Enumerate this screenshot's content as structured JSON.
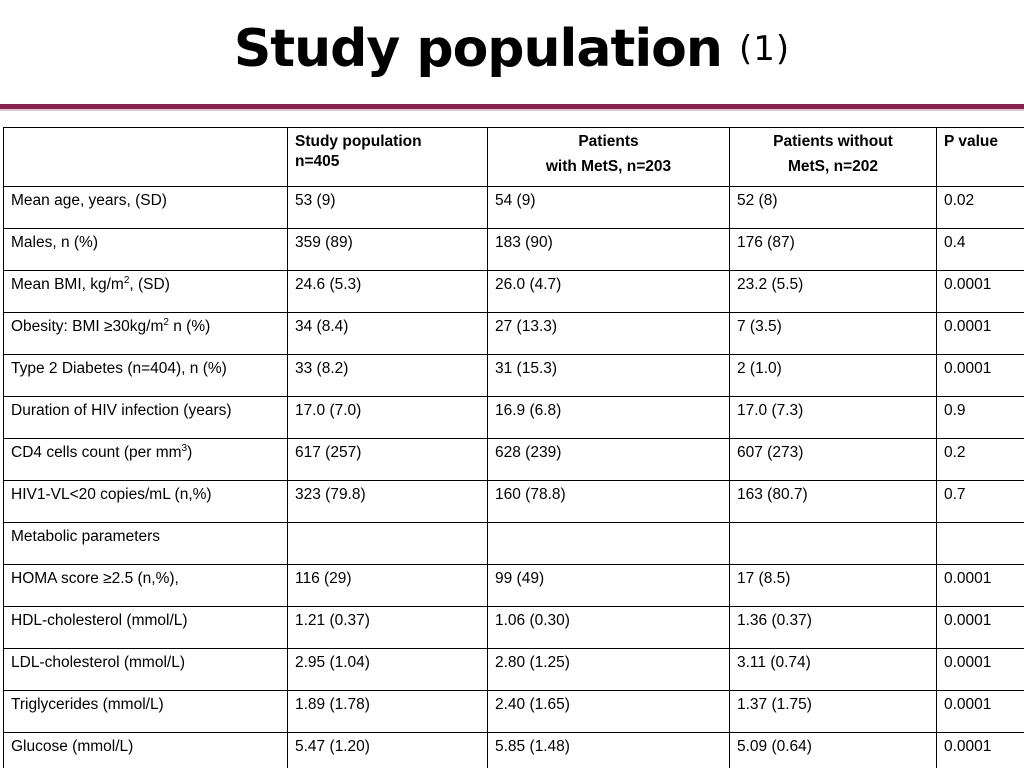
{
  "title": {
    "main": "Study population",
    "number": "(1)"
  },
  "table": {
    "headers": [
      {
        "line1": "",
        "line2": ""
      },
      {
        "line1": "Study population",
        "line2": "n=405"
      },
      {
        "line1": "Patients",
        "line2": "with MetS, n=203"
      },
      {
        "line1": "Patients without",
        "line2": "MetS, n=202"
      },
      {
        "line1": "P value",
        "line2": ""
      }
    ],
    "rows": [
      {
        "label": "Mean age, years, (SD)",
        "cells": [
          "53 (9)",
          "54 (9)",
          "52 (8)",
          "0.02"
        ]
      },
      {
        "label": "Males, n (%)",
        "cells": [
          "359 (89)",
          "183 (90)",
          "176 (87)",
          "0.4"
        ]
      },
      {
        "label_pre": "Mean BMI, kg/m",
        "label_sup": "2",
        "label_post": ", (SD)",
        "cells": [
          "24.6 (5.3)",
          "26.0 (4.7)",
          "23.2 (5.5)",
          "0.0001"
        ]
      },
      {
        "label_pre": "Obesity: BMI ≥30kg/m",
        "label_sup": "2",
        "label_post": " n (%)",
        "cells": [
          "34 (8.4)",
          "27 (13.3)",
          "7 (3.5)",
          "0.0001"
        ]
      },
      {
        "label": "Type 2 Diabetes (n=404), n (%)",
        "cells": [
          "33 (8.2)",
          "31 (15.3)",
          "2 (1.0)",
          "0.0001"
        ]
      },
      {
        "label": "Duration of HIV infection (years)",
        "cells": [
          "17.0 (7.0)",
          "16.9 (6.8)",
          "17.0 (7.3)",
          "0.9"
        ]
      },
      {
        "label_pre": "CD4 cells count (per mm",
        "label_sup": "3",
        "label_post": ")",
        "cells": [
          "617 (257)",
          "628 (239)",
          "607 (273)",
          "0.2"
        ]
      },
      {
        "label": "HIV1-VL<20 copies/mL (n,%)",
        "cells": [
          "323 (79.8)",
          "160 (78.8)",
          "163 (80.7)",
          "0.7"
        ]
      },
      {
        "label": "Metabolic parameters",
        "cells": [
          "",
          "",
          "",
          ""
        ]
      },
      {
        "label": "HOMA score ≥2.5 (n,%),",
        "cells": [
          "116 (29)",
          "99 (49)",
          "17 (8.5)",
          "0.0001"
        ]
      },
      {
        "label": "HDL-cholesterol (mmol/L)",
        "cells": [
          "1.21 (0.37)",
          "1.06 (0.30)",
          "1.36 (0.37)",
          "0.0001"
        ]
      },
      {
        "label": "LDL-cholesterol (mmol/L)",
        "cells": [
          "2.95 (1.04)",
          "2.80 (1.25)",
          "3.11 (0.74)",
          "0.0001"
        ]
      },
      {
        "label": "Triglycerides (mmol/L)",
        "cells": [
          "1.89 (1.78)",
          "2.40 (1.65)",
          "1.37 (1.75)",
          "0.0001"
        ]
      },
      {
        "label": "Glucose (mmol/L)",
        "cells": [
          "5.47 (1.20)",
          "5.85 (1.48)",
          "5.09 (0.64)",
          "0.0001"
        ]
      }
    ]
  },
  "colors": {
    "divider": "#8a1f4d",
    "text": "#000000",
    "border": "#000000"
  }
}
